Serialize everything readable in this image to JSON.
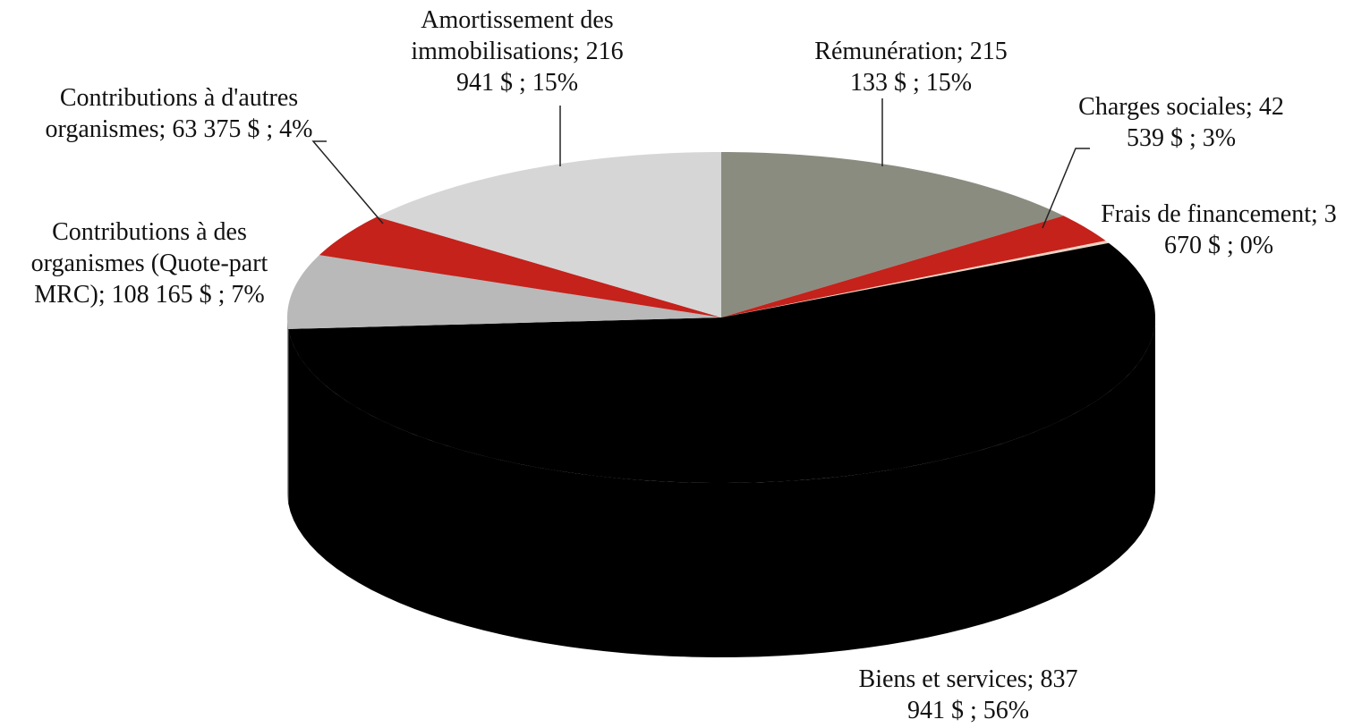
{
  "chart_data": {
    "type": "pie3d",
    "categories": [
      "Rémunération;",
      "Charges sociales;",
      "Frais de financement;",
      "Biens et services;",
      "Contributions à des organismes (Quote-part MRC);",
      "Contributions à d'autres organismes;",
      "Amortissement des immobilisations;"
    ],
    "values": [
      215133,
      42539,
      3670,
      837941,
      108165,
      63375,
      216941
    ],
    "value_labels": [
      "215 133  $ ; 15%",
      "42 539  $ ; 3%",
      "3 670  $ ; 0%",
      "837 941  $ ; 56%",
      "108 165  $ ; 7%",
      "63 375  $ ; 4%",
      "216 941  $ ; 15%"
    ],
    "colors": [
      "#8b8c80",
      "#c4221b",
      "#ead2c2",
      "#000000",
      "#b9b9b9",
      "#c4221b",
      "#d6d6d6"
    ]
  }
}
